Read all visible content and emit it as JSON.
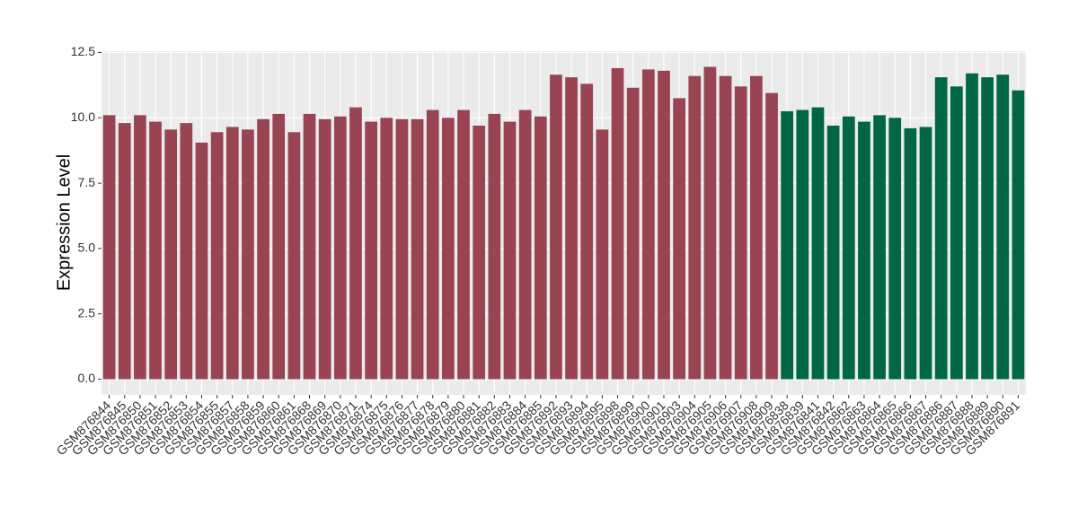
{
  "chart_data": {
    "type": "bar",
    "y_label": "Expression Level",
    "categories": [
      "GSM876844",
      "GSM876845",
      "GSM876850",
      "GSM876851",
      "GSM876852",
      "GSM876853",
      "GSM876854",
      "GSM876855",
      "GSM876857",
      "GSM876858",
      "GSM876859",
      "GSM876860",
      "GSM876861",
      "GSM876868",
      "GSM876869",
      "GSM876870",
      "GSM876871",
      "GSM876874",
      "GSM876875",
      "GSM876876",
      "GSM876877",
      "GSM876878",
      "GSM876879",
      "GSM876880",
      "GSM876881",
      "GSM876882",
      "GSM876883",
      "GSM876884",
      "GSM876885",
      "GSM876892",
      "GSM876893",
      "GSM876894",
      "GSM876895",
      "GSM876898",
      "GSM876899",
      "GSM876900",
      "GSM876901",
      "GSM876903",
      "GSM876904",
      "GSM876905",
      "GSM876906",
      "GSM876907",
      "GSM876908",
      "GSM876909",
      "GSM876838",
      "GSM876839",
      "GSM876841",
      "GSM876842",
      "GSM876862",
      "GSM876863",
      "GSM876864",
      "GSM876865",
      "GSM876866",
      "GSM876867",
      "GSM876886",
      "GSM876887",
      "GSM876888",
      "GSM876889",
      "GSM876890",
      "GSM876891"
    ],
    "series": [
      {
        "color": "#984452",
        "values": [
          10.1,
          9.8,
          10.1,
          9.85,
          9.55,
          9.8,
          9.05,
          9.45,
          9.65,
          9.55,
          9.95,
          10.15,
          9.45,
          10.15,
          9.95,
          10.05,
          10.4,
          9.85,
          10.0,
          9.95,
          9.95,
          10.3,
          10.0,
          10.3,
          9.7,
          10.15,
          9.85,
          10.3,
          10.05,
          11.65,
          11.55,
          11.3,
          9.55,
          11.9,
          11.15,
          11.85,
          11.8,
          10.75,
          11.6,
          11.95,
          11.6,
          11.2,
          11.6,
          10.95,
          null,
          null,
          null,
          null,
          null,
          null,
          null,
          null,
          null,
          null,
          null,
          null,
          null,
          null,
          null,
          null
        ]
      },
      {
        "color": "#006742",
        "values": [
          null,
          null,
          null,
          null,
          null,
          null,
          null,
          null,
          null,
          null,
          null,
          null,
          null,
          null,
          null,
          null,
          null,
          null,
          null,
          null,
          null,
          null,
          null,
          null,
          null,
          null,
          null,
          null,
          null,
          null,
          null,
          null,
          null,
          null,
          null,
          null,
          null,
          null,
          null,
          null,
          null,
          null,
          null,
          null,
          10.25,
          10.3,
          10.4,
          9.7,
          10.05,
          9.85,
          10.1,
          10.0,
          9.6,
          9.65,
          11.55,
          11.2,
          11.7,
          11.55,
          11.65,
          11.05
        ]
      }
    ],
    "ylim": [
      -0.6,
      12.55
    ],
    "yticks": [
      {
        "value": 0,
        "label": "0.0"
      },
      {
        "value": 2.5,
        "label": "2.5"
      },
      {
        "value": 5,
        "label": "5.0"
      },
      {
        "value": 7.5,
        "label": "7.5"
      },
      {
        "value": 10,
        "label": "10.0"
      },
      {
        "value": 12.5,
        "label": "12.5"
      }
    ],
    "grid": true
  }
}
